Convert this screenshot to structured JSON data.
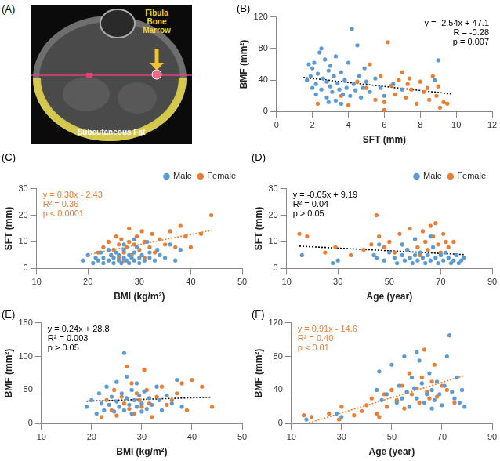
{
  "image_panel": {
    "title": "(A)",
    "labels": [
      "Fibula Bone Marrow",
      "Subcutaneous Fat"
    ]
  },
  "chart_data": [
    {
      "type": "scatter",
      "title": "(B)",
      "x_label": "SFT (mm)",
      "y_label": "BMF (mm²)",
      "xlim": [
        0,
        12
      ],
      "xticks": [
        0,
        2,
        4,
        6,
        8,
        10,
        12
      ],
      "ylim": [
        0,
        120
      ],
      "yticks": [
        0,
        40,
        80,
        120
      ],
      "grid": false,
      "annotations": [
        {
          "text": "y = -2.54x + 47.1",
          "color": "#000000"
        },
        {
          "text": "R = -0.28",
          "color": "#000000"
        },
        {
          "text": "p = 0.007",
          "color": "#000000"
        }
      ],
      "trendline": {
        "x": [
          1.5,
          9.7
        ],
        "y": [
          43.3,
          22.5
        ],
        "color": "#000000",
        "line_style": "dotted"
      },
      "series": [
        {
          "name": "Male",
          "color": "#5b9bd5",
          "marker": "circle",
          "x": [
            1.7,
            1.8,
            1.9,
            2,
            2,
            2.1,
            2.2,
            2.2,
            2.3,
            2.4,
            2.5,
            2.5,
            2.6,
            2.7,
            2.8,
            2.8,
            2.9,
            3,
            3,
            3.1,
            3.2,
            3.3,
            3.3,
            3.4,
            3.5,
            3.6,
            3.7,
            3.8,
            3.9,
            4,
            4.1,
            4.2,
            4.3,
            4.4,
            4.5,
            4.6,
            4.7,
            4.8,
            5,
            5.2,
            5.5,
            5.8,
            6,
            6.5,
            7,
            8.8,
            9,
            3.6,
            2.9,
            4.9
          ],
          "values": [
            40,
            60,
            45,
            55,
            30,
            62,
            35,
            22,
            48,
            75,
            80,
            28,
            42,
            66,
            18,
            38,
            52,
            32,
            58,
            25,
            45,
            14,
            70,
            36,
            28,
            50,
            22,
            40,
            30,
            62,
            20,
            105,
            35,
            27,
            84,
            45,
            18,
            30,
            38,
            25,
            42,
            30,
            20,
            35,
            28,
            40,
            65,
            10,
            12,
            55
          ]
        },
        {
          "name": "Female",
          "color": "#ed7d31",
          "marker": "circle",
          "x": [
            2.3,
            3.6,
            4,
            4.5,
            5,
            5.2,
            5.5,
            5.8,
            6,
            6.2,
            6.4,
            6.6,
            6.8,
            7,
            7.2,
            7.3,
            7.5,
            7.8,
            8,
            8.2,
            8.4,
            8.5,
            8.7,
            8.9,
            9,
            9.1,
            9.3,
            9.5,
            6,
            7.4
          ],
          "values": [
            10,
            20,
            8,
            38,
            30,
            60,
            15,
            45,
            12,
            88,
            33,
            22,
            40,
            50,
            18,
            35,
            28,
            10,
            38,
            25,
            30,
            15,
            45,
            20,
            32,
            5,
            12,
            10,
            2,
            42
          ]
        }
      ]
    },
    {
      "type": "scatter",
      "title": "(C)",
      "x_label": "BMI (kg/m²)",
      "y_label": "SFT (mm)",
      "xlim": [
        10,
        50
      ],
      "xticks": [
        10,
        20,
        30,
        40,
        50
      ],
      "ylim": [
        0,
        30
      ],
      "yticks": [
        0,
        10,
        20,
        30
      ],
      "grid": false,
      "legend": "top right",
      "annotations": [
        {
          "text": "y = 0.38x - 2.43",
          "color": "#ed7d31"
        },
        {
          "text": "R² = 0.36",
          "color": "#ed7d31"
        },
        {
          "text": "p < 0.0001",
          "color": "#ed7d31"
        }
      ],
      "trendline": {
        "x": [
          20,
          44
        ],
        "y": [
          5.2,
          14.3
        ],
        "color": "#ed7d31",
        "line_style": "dotted"
      },
      "series": [
        {
          "name": "Male",
          "color": "#5b9bd5",
          "marker": "circle",
          "x": [
            19,
            20,
            21,
            21.5,
            22,
            22.5,
            23,
            23,
            24,
            24.5,
            25,
            25,
            25.5,
            26,
            26,
            26.5,
            27,
            27,
            27.5,
            28,
            28,
            28.5,
            29,
            29,
            29.5,
            30,
            30,
            30.5,
            31,
            31.5,
            32,
            32,
            33,
            33.5,
            34,
            35,
            36,
            37,
            38,
            29,
            27,
            24
          ],
          "values": [
            3,
            5,
            2,
            4,
            3,
            6,
            2,
            4,
            3,
            5,
            2,
            4,
            6,
            3,
            5,
            2,
            4,
            7,
            3,
            5,
            2,
            4,
            6,
            3,
            8,
            4,
            2,
            5,
            3,
            10,
            4,
            6,
            3,
            7,
            5,
            4,
            9,
            3,
            7,
            11,
            9,
            7
          ]
        },
        {
          "name": "Female",
          "color": "#ed7d31",
          "marker": "circle",
          "x": [
            22,
            23,
            24,
            24.5,
            25,
            25.5,
            26,
            26,
            26.5,
            27,
            27.5,
            28,
            28,
            28.5,
            29,
            29.5,
            30,
            30.5,
            31,
            32,
            32.5,
            33,
            34,
            35,
            36,
            37,
            38,
            39,
            40,
            42,
            44,
            31,
            27
          ],
          "values": [
            6,
            8,
            10,
            5,
            7,
            12,
            9,
            4,
            11,
            6,
            8,
            15,
            10,
            5,
            9,
            12,
            7,
            14,
            10,
            8,
            13,
            6,
            11,
            9,
            14,
            8,
            16,
            12,
            8,
            13,
            20,
            4,
            3
          ]
        }
      ]
    },
    {
      "type": "scatter",
      "title": "(D)",
      "x_label": "Age (year)",
      "y_label": "SFT (mm)",
      "xlim": [
        10,
        90
      ],
      "xticks": [
        10,
        30,
        50,
        70,
        90
      ],
      "ylim": [
        0,
        30
      ],
      "yticks": [
        0,
        10,
        20,
        30
      ],
      "grid": false,
      "legend": "top right",
      "annotations": [
        {
          "text": "y = -0.05x + 9.19",
          "color": "#000000"
        },
        {
          "text": "R² = 0.04",
          "color": "#000000"
        },
        {
          "text": "p > 0.05",
          "color": "#000000"
        }
      ],
      "trendline": {
        "x": [
          15,
          79
        ],
        "y": [
          8.4,
          5.2
        ],
        "color": "#000000",
        "line_style": "dotted"
      },
      "series": [
        {
          "name": "Male",
          "color": "#5b9bd5",
          "marker": "circle",
          "x": [
            16,
            28,
            30,
            44,
            45,
            46,
            48,
            50,
            52,
            53,
            55,
            56,
            57,
            58,
            59,
            60,
            61,
            62,
            63,
            64,
            65,
            66,
            67,
            68,
            69,
            70,
            71,
            72,
            73,
            74,
            75,
            76,
            77,
            78,
            79,
            60,
            55,
            66
          ],
          "values": [
            5,
            2,
            3,
            5,
            4,
            9,
            3,
            6,
            4,
            2,
            5,
            3,
            7,
            4,
            2,
            5,
            3,
            6,
            4,
            2,
            5,
            3,
            8,
            4,
            2,
            5,
            3,
            6,
            4,
            2,
            3,
            5,
            2,
            3,
            4,
            11,
            9,
            12
          ]
        },
        {
          "name": "Female",
          "color": "#ed7d31",
          "marker": "circle",
          "x": [
            15,
            18,
            25,
            29,
            35,
            40,
            43,
            45,
            46,
            48,
            50,
            52,
            54,
            55,
            57,
            58,
            60,
            61,
            62,
            63,
            64,
            65,
            66,
            67,
            68,
            69,
            70,
            71,
            72,
            73,
            75,
            58
          ],
          "values": [
            13,
            12,
            6,
            8,
            5,
            7,
            9,
            20,
            12,
            8,
            10,
            6,
            13,
            9,
            7,
            15,
            11,
            8,
            5,
            14,
            10,
            7,
            16,
            12,
            17,
            9,
            6,
            13,
            10,
            8,
            10,
            4
          ]
        }
      ]
    },
    {
      "type": "scatter",
      "title": "(E)",
      "x_label": "BMI (kg/m²)",
      "y_label": "BMF (mm²)",
      "xlim": [
        10,
        50
      ],
      "xticks": [
        10,
        20,
        30,
        40,
        50
      ],
      "ylim": [
        0,
        150
      ],
      "yticks": [
        0,
        50,
        100,
        150
      ],
      "grid": false,
      "annotations": [
        {
          "text": "y = 0.24x + 28.8",
          "color": "#000000"
        },
        {
          "text": "R² = 0.003",
          "color": "#000000"
        },
        {
          "text": "p > 0.05",
          "color": "#000000"
        }
      ],
      "trendline": {
        "x": [
          19,
          44
        ],
        "y": [
          33.4,
          39.4
        ],
        "color": "#000000",
        "line_style": "dotted"
      },
      "series": [
        {
          "name": "Male",
          "color": "#5b9bd5",
          "marker": "circle",
          "x": [
            19,
            20,
            21,
            21.5,
            22,
            22.5,
            23,
            23.5,
            24,
            24.5,
            25,
            25,
            25.5,
            26.5,
            26,
            26.5,
            27,
            27,
            27.5,
            28,
            28,
            28.5,
            29,
            29,
            29.5,
            30,
            30,
            30.5,
            31,
            31.5,
            32,
            33,
            33.5,
            34,
            35,
            36,
            37,
            38
          ],
          "values": [
            25,
            35,
            15,
            45,
            30,
            20,
            55,
            28,
            40,
            18,
            62,
            33,
            25,
            105,
            45,
            20,
            38,
            70,
            28,
            50,
            15,
            35,
            25,
            60,
            42,
            30,
            18,
            48,
            22,
            38,
            28,
            55,
            35,
            20,
            42,
            30,
            65,
            25
          ]
        },
        {
          "name": "Female",
          "color": "#ed7d31",
          "marker": "circle",
          "x": [
            22,
            23,
            24,
            24.5,
            25,
            26,
            26.5,
            27,
            27.5,
            28,
            28.5,
            29,
            29.5,
            30,
            30.5,
            31,
            31.5,
            32,
            33,
            34,
            35,
            36,
            37,
            38,
            39,
            40,
            42,
            44
          ],
          "values": [
            10,
            35,
            20,
            50,
            12,
            40,
            30,
            85,
            22,
            60,
            15,
            45,
            35,
            25,
            80,
            50,
            30,
            10,
            40,
            55,
            28,
            35,
            45,
            60,
            20,
            65,
            55,
            25
          ]
        }
      ]
    },
    {
      "type": "scatter",
      "title": "(F)",
      "x_label": "Age (year)",
      "y_label": "BMF (mm²)",
      "xlim": [
        10,
        90
      ],
      "xticks": [
        10,
        30,
        50,
        70,
        90
      ],
      "ylim": [
        0,
        120
      ],
      "yticks": [
        0,
        40,
        80,
        120
      ],
      "grid": false,
      "annotations": [
        {
          "text": "y = 0.91x - 14.6",
          "color": "#ed7d31"
        },
        {
          "text": "R² = 0.40",
          "color": "#ed7d31"
        },
        {
          "text": "p < 0.01",
          "color": "#ed7d31"
        }
      ],
      "trendline": {
        "x": [
          17,
          79
        ],
        "y": [
          0.9,
          57.3
        ],
        "color": "#ed7d31",
        "line_style": "dotted"
      },
      "series": [
        {
          "name": "Male",
          "color": "#5b9bd5",
          "marker": "circle",
          "x": [
            16,
            28,
            30,
            44,
            45,
            46,
            48,
            50,
            52,
            53,
            54,
            55,
            56,
            57,
            58,
            59,
            60,
            61,
            62,
            63,
            64,
            65,
            66,
            67,
            68,
            69,
            70,
            71,
            72,
            73,
            74,
            75,
            76,
            77,
            78,
            79,
            60,
            66
          ],
          "values": [
            5,
            12,
            8,
            40,
            62,
            28,
            35,
            70,
            25,
            45,
            30,
            80,
            38,
            20,
            55,
            42,
            30,
            75,
            48,
            25,
            35,
            60,
            40,
            28,
            50,
            35,
            22,
            45,
            80,
            105,
            38,
            30,
            55,
            25,
            40,
            20,
            85,
            18
          ]
        },
        {
          "name": "Female",
          "color": "#ed7d31",
          "marker": "circle",
          "x": [
            15,
            18,
            25,
            29,
            30,
            35,
            38,
            40,
            42,
            44,
            45,
            47,
            48,
            50,
            52,
            54,
            55,
            57,
            58,
            60,
            61,
            62,
            63,
            64,
            65,
            66,
            67,
            68,
            70,
            72,
            75
          ],
          "values": [
            10,
            8,
            12,
            5,
            20,
            10,
            15,
            22,
            30,
            12,
            8,
            35,
            20,
            40,
            28,
            45,
            18,
            60,
            35,
            42,
            25,
            55,
            88,
            38,
            30,
            50,
            70,
            32,
            45,
            40,
            25
          ]
        }
      ]
    }
  ]
}
